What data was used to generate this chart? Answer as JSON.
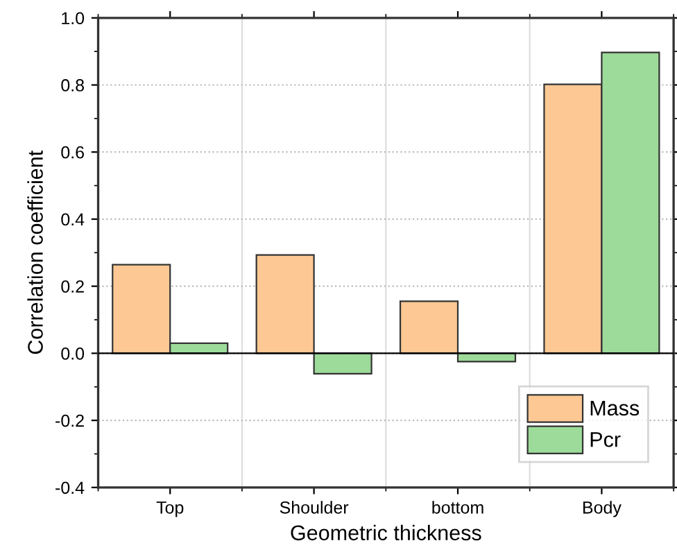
{
  "chart_data": {
    "type": "bar",
    "xlabel": "Geometric thickness",
    "ylabel": "Correlation coefficient",
    "categories": [
      "Top",
      "Shoulder",
      "bottom",
      "Body"
    ],
    "series": [
      {
        "name": "Mass",
        "color": "#fdc894",
        "values": [
          0.264,
          0.293,
          0.155,
          0.802
        ]
      },
      {
        "name": "Pcr",
        "color": "#9ddb9a",
        "values": [
          0.03,
          -0.061,
          -0.025,
          0.897
        ]
      }
    ],
    "ylim": [
      -0.4,
      1.0
    ],
    "yticks": [
      {
        "value": -0.4,
        "label": "-0.4"
      },
      {
        "value": -0.2,
        "label": "-0.2"
      },
      {
        "value": 0,
        "label": "0.0"
      },
      {
        "value": 0.2,
        "label": "0.2"
      },
      {
        "value": 0.4,
        "label": "0.4"
      },
      {
        "value": 0.6,
        "label": "0.6"
      },
      {
        "value": 0.8,
        "label": "0.8"
      },
      {
        "value": 1.0,
        "label": "1.0"
      }
    ],
    "grid": true,
    "legend": "bottom right"
  }
}
